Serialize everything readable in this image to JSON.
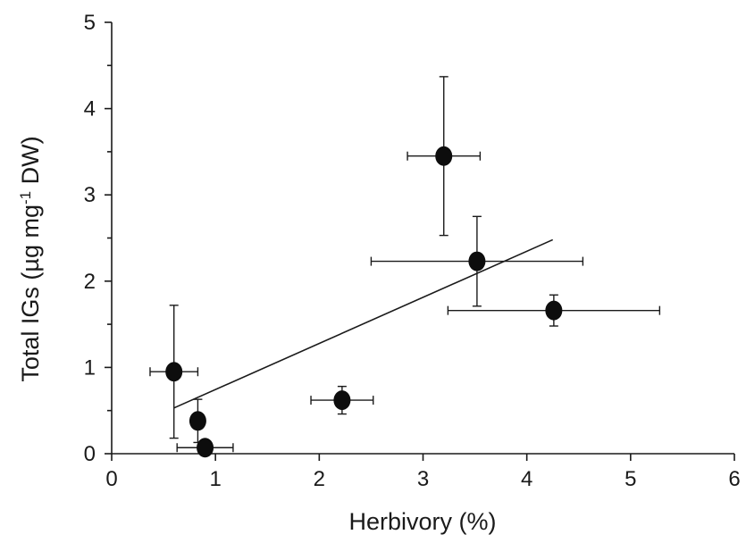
{
  "chart_data": {
    "type": "scatter",
    "xlabel": "Herbivory (%)",
    "ylabel_parts": {
      "main": "Total IGs (µg mg",
      "superscript": "-1",
      "tail": " DW)"
    },
    "xlim": [
      0,
      6
    ],
    "ylim": [
      0,
      5
    ],
    "x_ticks": [
      0,
      1,
      2,
      3,
      4,
      5,
      6
    ],
    "y_ticks": [
      0,
      1,
      2,
      3,
      4,
      5
    ],
    "grid": false,
    "points": [
      {
        "x": 0.6,
        "y": 0.95,
        "x_err": 0.23,
        "y_err": 0.77
      },
      {
        "x": 0.83,
        "y": 0.38,
        "x_err": 0.0,
        "y_err": 0.25
      },
      {
        "x": 0.9,
        "y": 0.07,
        "x_err": 0.27,
        "y_err": 0.05
      },
      {
        "x": 2.22,
        "y": 0.62,
        "x_err": 0.3,
        "y_err": 0.16
      },
      {
        "x": 3.2,
        "y": 3.45,
        "x_err": 0.35,
        "y_err": 0.92
      },
      {
        "x": 3.52,
        "y": 2.23,
        "x_err": 1.02,
        "y_err": 0.52
      },
      {
        "x": 4.26,
        "y": 1.66,
        "x_err": 1.02,
        "y_err": 0.18
      }
    ],
    "trendline": {
      "x": [
        0.6,
        4.25
      ],
      "y": [
        0.53,
        2.48
      ]
    }
  }
}
